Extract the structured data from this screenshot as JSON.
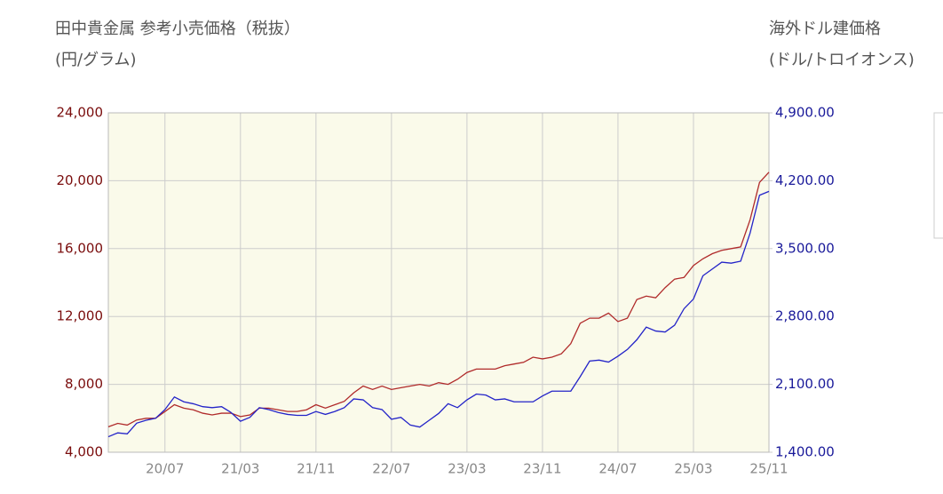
{
  "chart_data": {
    "type": "line",
    "title": "田中貴金属 参考小売価格（税抜）",
    "y_label": "(円/グラム)",
    "y2_title": "海外ドル建価格",
    "y2_label": "(ドル/トロイオンス)",
    "categories": [
      null,
      null,
      null,
      null,
      null,
      null,
      "20/07",
      null,
      null,
      null,
      null,
      null,
      null,
      null,
      "21/03",
      null,
      null,
      null,
      null,
      null,
      null,
      null,
      "21/11",
      null,
      null,
      null,
      null,
      null,
      null,
      null,
      "22/07",
      null,
      null,
      null,
      null,
      null,
      null,
      null,
      "23/03",
      null,
      null,
      null,
      null,
      null,
      null,
      null,
      "23/11",
      null,
      null,
      null,
      null,
      null,
      null,
      null,
      "24/07",
      null,
      null,
      null,
      null,
      null,
      null,
      null,
      "25/03",
      null,
      null,
      null,
      null,
      null,
      null,
      null,
      "25/11"
    ],
    "series": [
      {
        "color": "#b02a2a",
        "axis": "y",
        "values": [
          5500,
          5700,
          5600,
          5900,
          6000,
          6000,
          6400,
          6800,
          6600,
          6500,
          6300,
          6200,
          6300,
          6300,
          6100,
          6200,
          6600,
          6600,
          6500,
          6400,
          6400,
          6500,
          6800,
          6600,
          6800,
          7000,
          7500,
          7900,
          7700,
          7900,
          7700,
          7800,
          7900,
          8000,
          7900,
          8100,
          8000,
          8300,
          8700,
          8900,
          8900,
          8900,
          9100,
          9200,
          9300,
          9600,
          9500,
          9600,
          9800,
          10400,
          11600,
          11900,
          11900,
          12200,
          11700,
          11900,
          13000,
          13200,
          13100,
          13700,
          14200,
          14300,
          15000,
          15400,
          15700,
          15900,
          16000,
          16100,
          17700,
          19900,
          20500
        ]
      },
      {
        "color": "#2323c8",
        "axis": "y2",
        "values": [
          1560,
          1600,
          1590,
          1700,
          1730,
          1750,
          1840,
          1970,
          1920,
          1900,
          1870,
          1860,
          1870,
          1810,
          1720,
          1760,
          1860,
          1840,
          1810,
          1790,
          1780,
          1780,
          1820,
          1790,
          1820,
          1860,
          1950,
          1940,
          1860,
          1840,
          1740,
          1760,
          1680,
          1660,
          1730,
          1800,
          1900,
          1860,
          1940,
          2000,
          1990,
          1940,
          1950,
          1920,
          1920,
          1920,
          1980,
          2030,
          2030,
          2030,
          2180,
          2340,
          2350,
          2330,
          2390,
          2460,
          2560,
          2690,
          2650,
          2640,
          2710,
          2880,
          2980,
          3220,
          3290,
          3360,
          3350,
          3370,
          3660,
          4050,
          4090
        ]
      }
    ],
    "ylim": [
      4000,
      24000
    ],
    "yticks": [
      {
        "value": 4000,
        "label": "4,000"
      },
      {
        "value": 8000,
        "label": "8,000"
      },
      {
        "value": 12000,
        "label": "12,000"
      },
      {
        "value": 16000,
        "label": "16,000"
      },
      {
        "value": 20000,
        "label": "20,000"
      },
      {
        "value": 24000,
        "label": "24,000"
      }
    ],
    "y2lim": [
      1400,
      4900
    ],
    "y2ticks": [
      {
        "value": 1400,
        "label": "1,400.00"
      },
      {
        "value": 2100,
        "label": "2,100.00"
      },
      {
        "value": 2800,
        "label": "2,800.00"
      },
      {
        "value": 3500,
        "label": "3,500.00"
      },
      {
        "value": 4200,
        "label": "4,200.00"
      },
      {
        "value": 4900,
        "label": "4,900.00"
      }
    ],
    "grid": true
  }
}
